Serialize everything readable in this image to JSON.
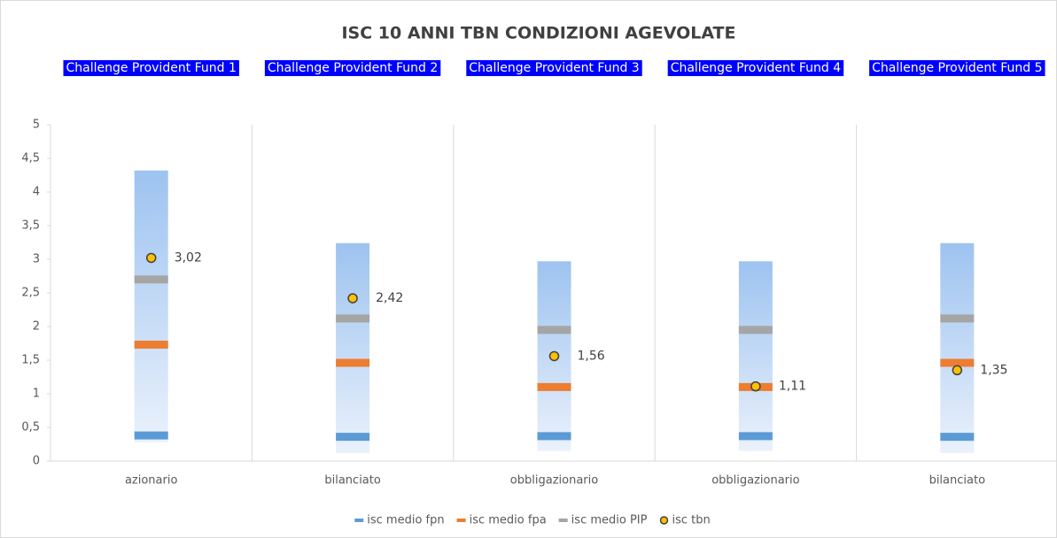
{
  "chart_data": {
    "type": "range-marker",
    "title": "ISC  10 ANNI TBN CONDIZIONI AGEVOLATE",
    "annotations": [
      "Challenge Provident Fund 1",
      "Challenge Provident Fund 2",
      "Challenge Provident Fund 3",
      "Challenge Provident Fund 4",
      "Challenge Provident Fund 5"
    ],
    "categories": [
      "azionario",
      "bilanciato",
      "obbligazionario",
      "obbligazionario",
      "bilanciato"
    ],
    "range_low": [
      0.28,
      0.12,
      0.15,
      0.15,
      0.12
    ],
    "range_high": [
      4.32,
      3.24,
      2.97,
      2.97,
      3.24
    ],
    "range_color": "#9dc3f0",
    "series": [
      {
        "name": "isc medio fpn",
        "color": "#5b9bd5",
        "marker": "dash",
        "values": [
          0.38,
          0.36,
          0.37,
          0.37,
          0.36
        ]
      },
      {
        "name": "isc medio fpa",
        "color": "#ed7d31",
        "marker": "dash",
        "values": [
          1.73,
          1.46,
          1.1,
          1.1,
          1.46
        ]
      },
      {
        "name": "isc medio PIP",
        "color": "#a5a5a5",
        "marker": "dash",
        "values": [
          2.7,
          2.12,
          1.95,
          1.95,
          2.12
        ]
      },
      {
        "name": "isc tbn",
        "color": "#ffc000",
        "marker": "dot",
        "values": [
          3.02,
          2.42,
          1.56,
          1.11,
          1.35
        ],
        "value_labels": [
          "3,02",
          "2,42",
          "1,56",
          "1,11",
          "1,35"
        ]
      }
    ],
    "ylim": [
      0,
      5
    ],
    "yticks": [
      0,
      {
        "value": 0.5,
        "label": "0,5"
      },
      1,
      {
        "value": 1.5,
        "label": "1,5"
      },
      2,
      {
        "value": 2.5,
        "label": "2,5"
      },
      3,
      {
        "value": 3.5,
        "label": "3,5"
      },
      4,
      {
        "value": 4.5,
        "label": "4,5"
      },
      5
    ],
    "legend": "bottom"
  }
}
